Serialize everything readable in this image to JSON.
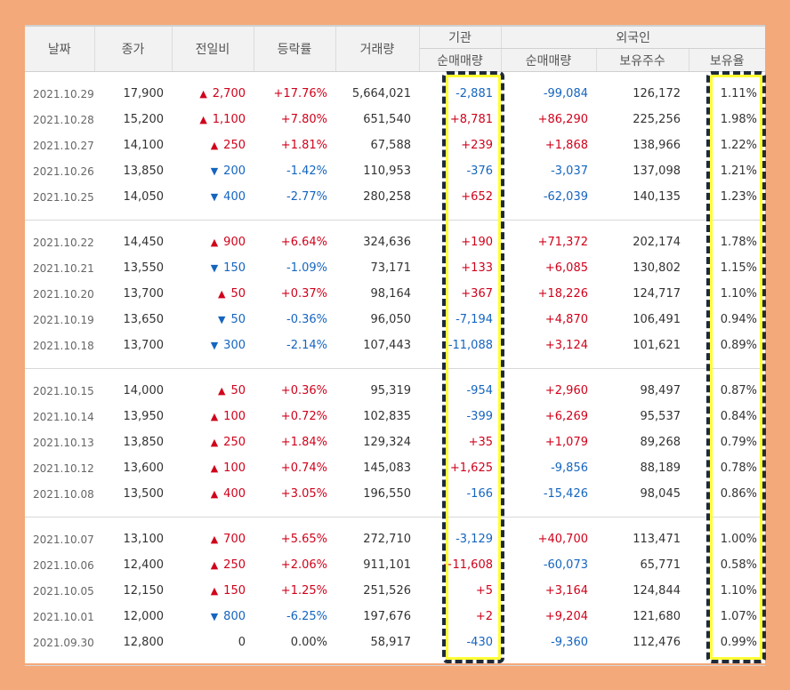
{
  "headers": {
    "date": "날짜",
    "close": "종가",
    "change": "전일비",
    "rate": "등락률",
    "volume": "거래량",
    "institution": "기관",
    "foreign": "외국인",
    "inst_net": "순매매량",
    "foreign_net": "순매매량",
    "foreign_holding": "보유주수",
    "foreign_ratio": "보유율"
  },
  "colors": {
    "up": "#d0021b",
    "down": "#1565c0",
    "highlight": "#ffff33",
    "frame": "#f4a97a"
  },
  "groups": [
    [
      {
        "date": "2021.10.29",
        "close": "17,900",
        "dir": "up",
        "change": "2,700",
        "rate": "+17.76%",
        "volume": "5,664,021",
        "inst": "-2,881",
        "fnet": "-99,084",
        "fhold": "126,172",
        "fratio": "1.11%"
      },
      {
        "date": "2021.10.28",
        "close": "15,200",
        "dir": "up",
        "change": "1,100",
        "rate": "+7.80%",
        "volume": "651,540",
        "inst": "+8,781",
        "fnet": "+86,290",
        "fhold": "225,256",
        "fratio": "1.98%"
      },
      {
        "date": "2021.10.27",
        "close": "14,100",
        "dir": "up",
        "change": "250",
        "rate": "+1.81%",
        "volume": "67,588",
        "inst": "+239",
        "fnet": "+1,868",
        "fhold": "138,966",
        "fratio": "1.22%"
      },
      {
        "date": "2021.10.26",
        "close": "13,850",
        "dir": "down",
        "change": "200",
        "rate": "-1.42%",
        "volume": "110,953",
        "inst": "-376",
        "fnet": "-3,037",
        "fhold": "137,098",
        "fratio": "1.21%"
      },
      {
        "date": "2021.10.25",
        "close": "14,050",
        "dir": "down",
        "change": "400",
        "rate": "-2.77%",
        "volume": "280,258",
        "inst": "+652",
        "fnet": "-62,039",
        "fhold": "140,135",
        "fratio": "1.23%"
      }
    ],
    [
      {
        "date": "2021.10.22",
        "close": "14,450",
        "dir": "up",
        "change": "900",
        "rate": "+6.64%",
        "volume": "324,636",
        "inst": "+190",
        "fnet": "+71,372",
        "fhold": "202,174",
        "fratio": "1.78%"
      },
      {
        "date": "2021.10.21",
        "close": "13,550",
        "dir": "down",
        "change": "150",
        "rate": "-1.09%",
        "volume": "73,171",
        "inst": "+133",
        "fnet": "+6,085",
        "fhold": "130,802",
        "fratio": "1.15%"
      },
      {
        "date": "2021.10.20",
        "close": "13,700",
        "dir": "up",
        "change": "50",
        "rate": "+0.37%",
        "volume": "98,164",
        "inst": "+367",
        "fnet": "+18,226",
        "fhold": "124,717",
        "fratio": "1.10%"
      },
      {
        "date": "2021.10.19",
        "close": "13,650",
        "dir": "down",
        "change": "50",
        "rate": "-0.36%",
        "volume": "96,050",
        "inst": "-7,194",
        "fnet": "+4,870",
        "fhold": "106,491",
        "fratio": "0.94%"
      },
      {
        "date": "2021.10.18",
        "close": "13,700",
        "dir": "down",
        "change": "300",
        "rate": "-2.14%",
        "volume": "107,443",
        "inst": "-11,088",
        "fnet": "+3,124",
        "fhold": "101,621",
        "fratio": "0.89%"
      }
    ],
    [
      {
        "date": "2021.10.15",
        "close": "14,000",
        "dir": "up",
        "change": "50",
        "rate": "+0.36%",
        "volume": "95,319",
        "inst": "-954",
        "fnet": "+2,960",
        "fhold": "98,497",
        "fratio": "0.87%"
      },
      {
        "date": "2021.10.14",
        "close": "13,950",
        "dir": "up",
        "change": "100",
        "rate": "+0.72%",
        "volume": "102,835",
        "inst": "-399",
        "fnet": "+6,269",
        "fhold": "95,537",
        "fratio": "0.84%"
      },
      {
        "date": "2021.10.13",
        "close": "13,850",
        "dir": "up",
        "change": "250",
        "rate": "+1.84%",
        "volume": "129,324",
        "inst": "+35",
        "fnet": "+1,079",
        "fhold": "89,268",
        "fratio": "0.79%"
      },
      {
        "date": "2021.10.12",
        "close": "13,600",
        "dir": "up",
        "change": "100",
        "rate": "+0.74%",
        "volume": "145,083",
        "inst": "+1,625",
        "fnet": "-9,856",
        "fhold": "88,189",
        "fratio": "0.78%"
      },
      {
        "date": "2021.10.08",
        "close": "13,500",
        "dir": "up",
        "change": "400",
        "rate": "+3.05%",
        "volume": "196,550",
        "inst": "-166",
        "fnet": "-15,426",
        "fhold": "98,045",
        "fratio": "0.86%"
      }
    ],
    [
      {
        "date": "2021.10.07",
        "close": "13,100",
        "dir": "up",
        "change": "700",
        "rate": "+5.65%",
        "volume": "272,710",
        "inst": "-3,129",
        "fnet": "+40,700",
        "fhold": "113,471",
        "fratio": "1.00%"
      },
      {
        "date": "2021.10.06",
        "close": "12,400",
        "dir": "up",
        "change": "250",
        "rate": "+2.06%",
        "volume": "911,101",
        "inst": "+11,608",
        "fnet": "-60,073",
        "fhold": "65,771",
        "fratio": "0.58%"
      },
      {
        "date": "2021.10.05",
        "close": "12,150",
        "dir": "up",
        "change": "150",
        "rate": "+1.25%",
        "volume": "251,526",
        "inst": "+5",
        "fnet": "+3,164",
        "fhold": "124,844",
        "fratio": "1.10%"
      },
      {
        "date": "2021.10.01",
        "close": "12,000",
        "dir": "down",
        "change": "800",
        "rate": "-6.25%",
        "volume": "197,676",
        "inst": "+2",
        "fnet": "+9,204",
        "fhold": "121,680",
        "fratio": "1.07%"
      },
      {
        "date": "2021.09.30",
        "close": "12,800",
        "dir": "flat",
        "change": "0",
        "rate": "0.00%",
        "volume": "58,917",
        "inst": "-430",
        "fnet": "-9,360",
        "fhold": "112,476",
        "fratio": "0.99%"
      }
    ]
  ]
}
